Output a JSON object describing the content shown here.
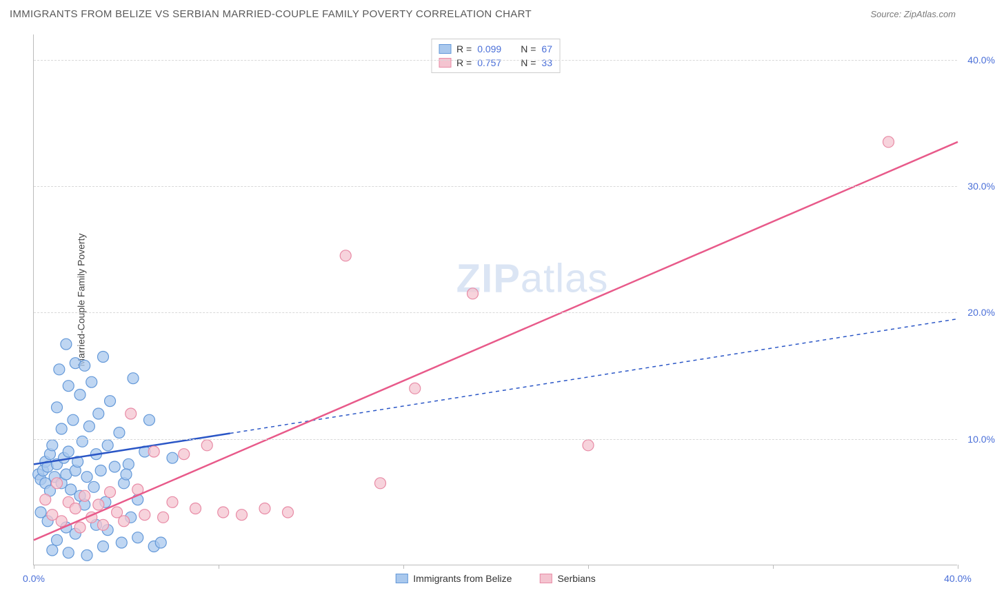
{
  "header": {
    "title": "IMMIGRANTS FROM BELIZE VS SERBIAN MARRIED-COUPLE FAMILY POVERTY CORRELATION CHART",
    "source_label": "Source: ZipAtlas.com"
  },
  "watermark": {
    "part1": "ZIP",
    "part2": "atlas"
  },
  "chart": {
    "type": "scatter",
    "y_axis_label": "Married-Couple Family Poverty",
    "xlim": [
      0,
      40
    ],
    "ylim": [
      0,
      42
    ],
    "x_ticks": [
      0,
      8,
      16,
      24,
      32,
      40
    ],
    "x_tick_labels": {
      "0": "0.0%",
      "40": "40.0%"
    },
    "y_ticks": [
      10,
      20,
      30,
      40
    ],
    "y_tick_labels": [
      "10.0%",
      "20.0%",
      "30.0%",
      "40.0%"
    ],
    "grid_color": "#d8d8d8",
    "axis_color": "#bbbbbb",
    "background_color": "#ffffff",
    "series": [
      {
        "name": "Immigrants from Belize",
        "marker_color_fill": "#a9c8ed",
        "marker_color_stroke": "#6398d8",
        "marker_opacity": 0.75,
        "marker_radius": 8,
        "line_color": "#2a56c6",
        "line_width": 2.5,
        "line_dash_extension": "5,5",
        "r_value": "0.099",
        "n_value": "67",
        "trend": {
          "x1": 0,
          "y1": 8.0,
          "x2": 40,
          "y2": 19.5,
          "solid_until_x": 8.5
        },
        "points": [
          [
            0.2,
            7.2
          ],
          [
            0.3,
            6.8
          ],
          [
            0.4,
            7.5
          ],
          [
            0.5,
            8.2
          ],
          [
            0.5,
            6.5
          ],
          [
            0.6,
            7.8
          ],
          [
            0.7,
            8.8
          ],
          [
            0.7,
            5.9
          ],
          [
            0.8,
            9.5
          ],
          [
            0.9,
            7.0
          ],
          [
            1.0,
            12.5
          ],
          [
            1.0,
            8.0
          ],
          [
            1.1,
            15.5
          ],
          [
            1.2,
            6.5
          ],
          [
            1.2,
            10.8
          ],
          [
            1.3,
            8.5
          ],
          [
            1.4,
            17.5
          ],
          [
            1.4,
            7.2
          ],
          [
            1.5,
            14.2
          ],
          [
            1.5,
            9.0
          ],
          [
            1.6,
            6.0
          ],
          [
            1.7,
            11.5
          ],
          [
            1.8,
            16.0
          ],
          [
            1.8,
            7.5
          ],
          [
            1.9,
            8.2
          ],
          [
            2.0,
            13.5
          ],
          [
            2.0,
            5.5
          ],
          [
            2.1,
            9.8
          ],
          [
            2.2,
            15.8
          ],
          [
            2.3,
            7.0
          ],
          [
            2.4,
            11.0
          ],
          [
            2.5,
            14.5
          ],
          [
            2.6,
            6.2
          ],
          [
            2.7,
            8.8
          ],
          [
            2.8,
            12.0
          ],
          [
            2.9,
            7.5
          ],
          [
            3.0,
            16.5
          ],
          [
            3.1,
            5.0
          ],
          [
            3.2,
            9.5
          ],
          [
            3.3,
            13.0
          ],
          [
            3.5,
            7.8
          ],
          [
            3.7,
            10.5
          ],
          [
            3.9,
            6.5
          ],
          [
            4.1,
            8.0
          ],
          [
            4.3,
            14.8
          ],
          [
            4.5,
            5.2
          ],
          [
            4.8,
            9.0
          ],
          [
            5.0,
            11.5
          ],
          [
            0.3,
            4.2
          ],
          [
            0.6,
            3.5
          ],
          [
            1.0,
            2.0
          ],
          [
            1.4,
            3.0
          ],
          [
            1.8,
            2.5
          ],
          [
            2.2,
            4.8
          ],
          [
            2.7,
            3.2
          ],
          [
            3.2,
            2.8
          ],
          [
            3.8,
            1.8
          ],
          [
            4.5,
            2.2
          ],
          [
            5.2,
            1.5
          ],
          [
            0.8,
            1.2
          ],
          [
            1.5,
            1.0
          ],
          [
            2.3,
            0.8
          ],
          [
            3.0,
            1.5
          ],
          [
            4.0,
            7.2
          ],
          [
            5.5,
            1.8
          ],
          [
            6.0,
            8.5
          ],
          [
            4.2,
            3.8
          ]
        ]
      },
      {
        "name": "Serbians",
        "marker_color_fill": "#f4c4d0",
        "marker_color_stroke": "#e88aa5",
        "marker_opacity": 0.75,
        "marker_radius": 8,
        "line_color": "#e85a8a",
        "line_width": 2.5,
        "r_value": "0.757",
        "n_value": "33",
        "trend": {
          "x1": 0,
          "y1": 2.0,
          "x2": 40,
          "y2": 33.5
        },
        "points": [
          [
            0.5,
            5.2
          ],
          [
            0.8,
            4.0
          ],
          [
            1.0,
            6.5
          ],
          [
            1.2,
            3.5
          ],
          [
            1.5,
            5.0
          ],
          [
            1.8,
            4.5
          ],
          [
            2.0,
            3.0
          ],
          [
            2.2,
            5.5
          ],
          [
            2.5,
            3.8
          ],
          [
            2.8,
            4.8
          ],
          [
            3.0,
            3.2
          ],
          [
            3.3,
            5.8
          ],
          [
            3.6,
            4.2
          ],
          [
            3.9,
            3.5
          ],
          [
            4.2,
            12.0
          ],
          [
            4.5,
            6.0
          ],
          [
            4.8,
            4.0
          ],
          [
            5.2,
            9.0
          ],
          [
            5.6,
            3.8
          ],
          [
            6.0,
            5.0
          ],
          [
            6.5,
            8.8
          ],
          [
            7.0,
            4.5
          ],
          [
            7.5,
            9.5
          ],
          [
            8.2,
            4.2
          ],
          [
            9.0,
            4.0
          ],
          [
            10.0,
            4.5
          ],
          [
            11.0,
            4.2
          ],
          [
            13.5,
            24.5
          ],
          [
            15.0,
            6.5
          ],
          [
            16.5,
            14.0
          ],
          [
            19.0,
            21.5
          ],
          [
            24.0,
            9.5
          ],
          [
            37.0,
            33.5
          ]
        ]
      }
    ],
    "legend_top": {
      "r_label": "R =",
      "n_label": "N ="
    },
    "legend_bottom_items": [
      "Immigrants from Belize",
      "Serbians"
    ]
  }
}
